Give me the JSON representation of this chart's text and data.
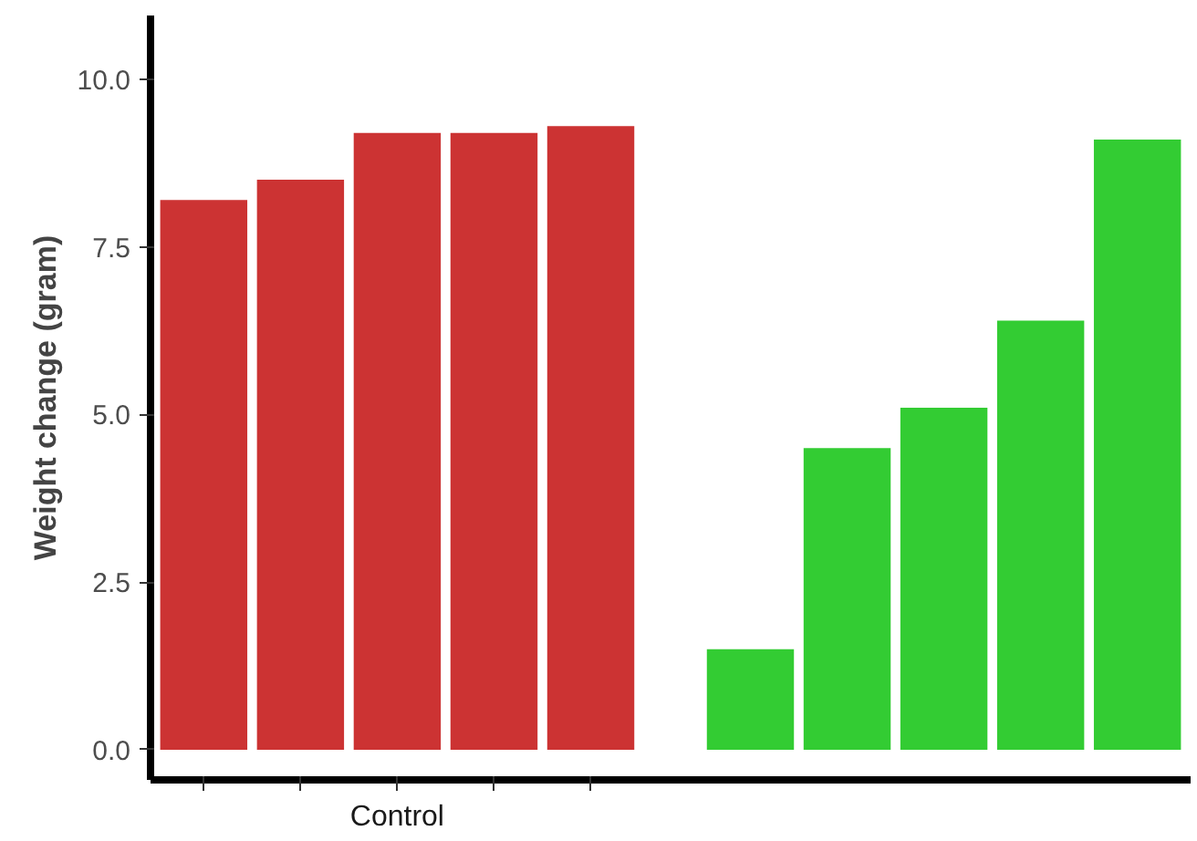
{
  "chart_data": {
    "type": "bar",
    "categories": [
      null,
      null,
      null,
      null,
      null,
      null,
      null,
      null,
      null,
      null
    ],
    "values": [
      8.2,
      8.5,
      9.2,
      9.2,
      9.3,
      1.5,
      4.5,
      5.1,
      6.4,
      9.1
    ],
    "colors": [
      "#cc3333",
      "#cc3333",
      "#cc3333",
      "#cc3333",
      "#cc3333",
      "#33cc33",
      "#33cc33",
      "#33cc33",
      "#33cc33",
      "#33cc33"
    ],
    "annotations": [
      "Control"
    ],
    "ylabel": "Weight change (gram)",
    "ylim": [
      -0.45,
      10.95
    ],
    "yticks": [
      {
        "value": 0,
        "label": "0.0"
      },
      {
        "value": 2.5,
        "label": "2.5"
      },
      {
        "value": 5,
        "label": "5.0"
      },
      {
        "value": 7.5,
        "label": "7.5"
      },
      {
        "value": 10,
        "label": "10.0"
      }
    ],
    "tick_labels": "y",
    "grid": false
  }
}
